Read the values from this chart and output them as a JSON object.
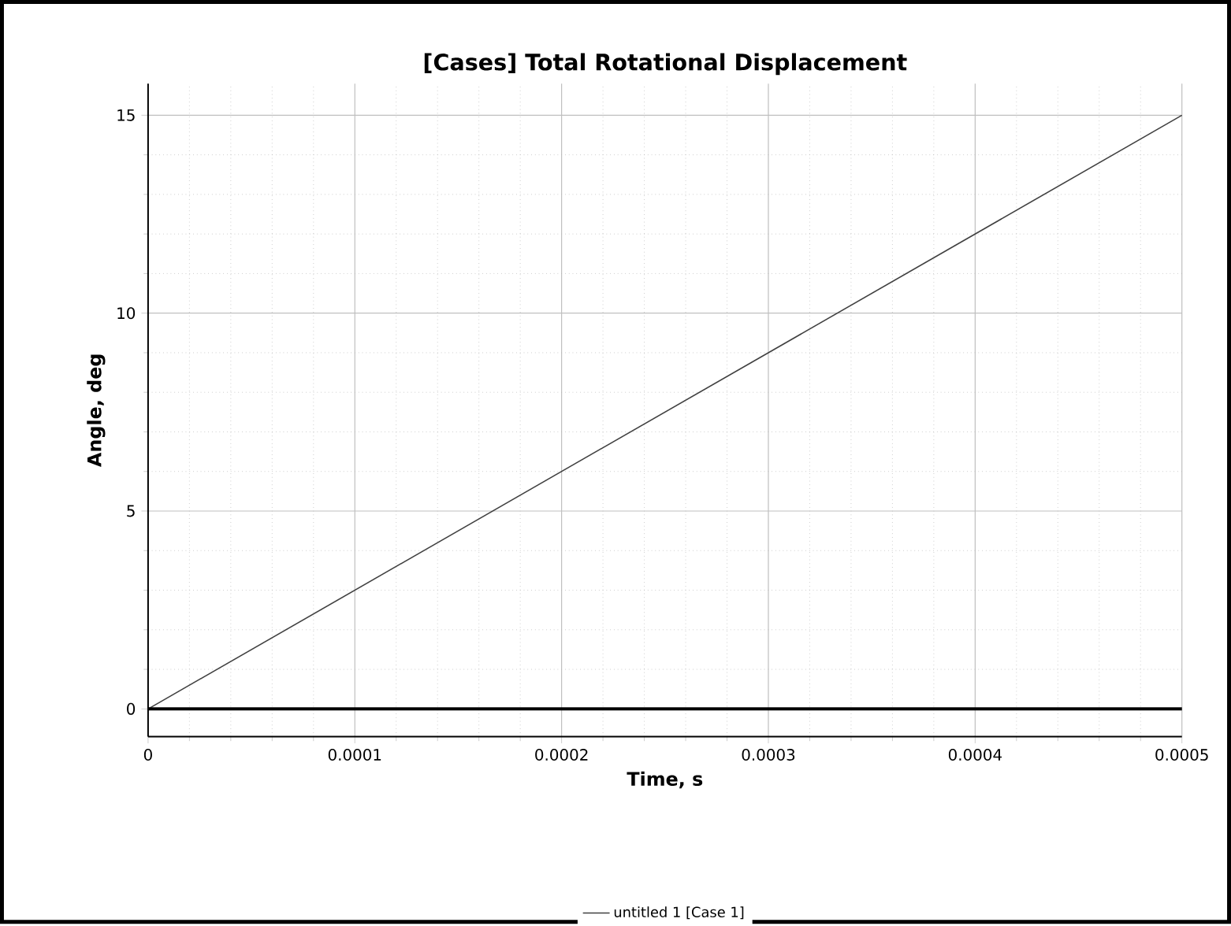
{
  "chart_data": {
    "type": "line",
    "title": "[Cases] Total Rotational Displacement",
    "xlabel": "Time, s",
    "ylabel": "Angle, deg",
    "x": [
      0,
      0.0005
    ],
    "series": [
      {
        "name": "untitled 1 [Case 1]",
        "color": "#404040",
        "values": [
          0,
          15
        ]
      }
    ],
    "xlim": [
      0,
      0.0005
    ],
    "ylim": [
      -0.7,
      15.8
    ],
    "xticks": [
      0,
      0.0001,
      0.0002,
      0.0003,
      0.0004,
      0.0005
    ],
    "yticks": [
      0,
      5,
      10,
      15
    ],
    "ref_lines": [
      {
        "axis": "y",
        "value": 0,
        "color": "#000000"
      }
    ],
    "grid": true,
    "legend": "bottom",
    "marker": "none",
    "line_style": "solid"
  }
}
